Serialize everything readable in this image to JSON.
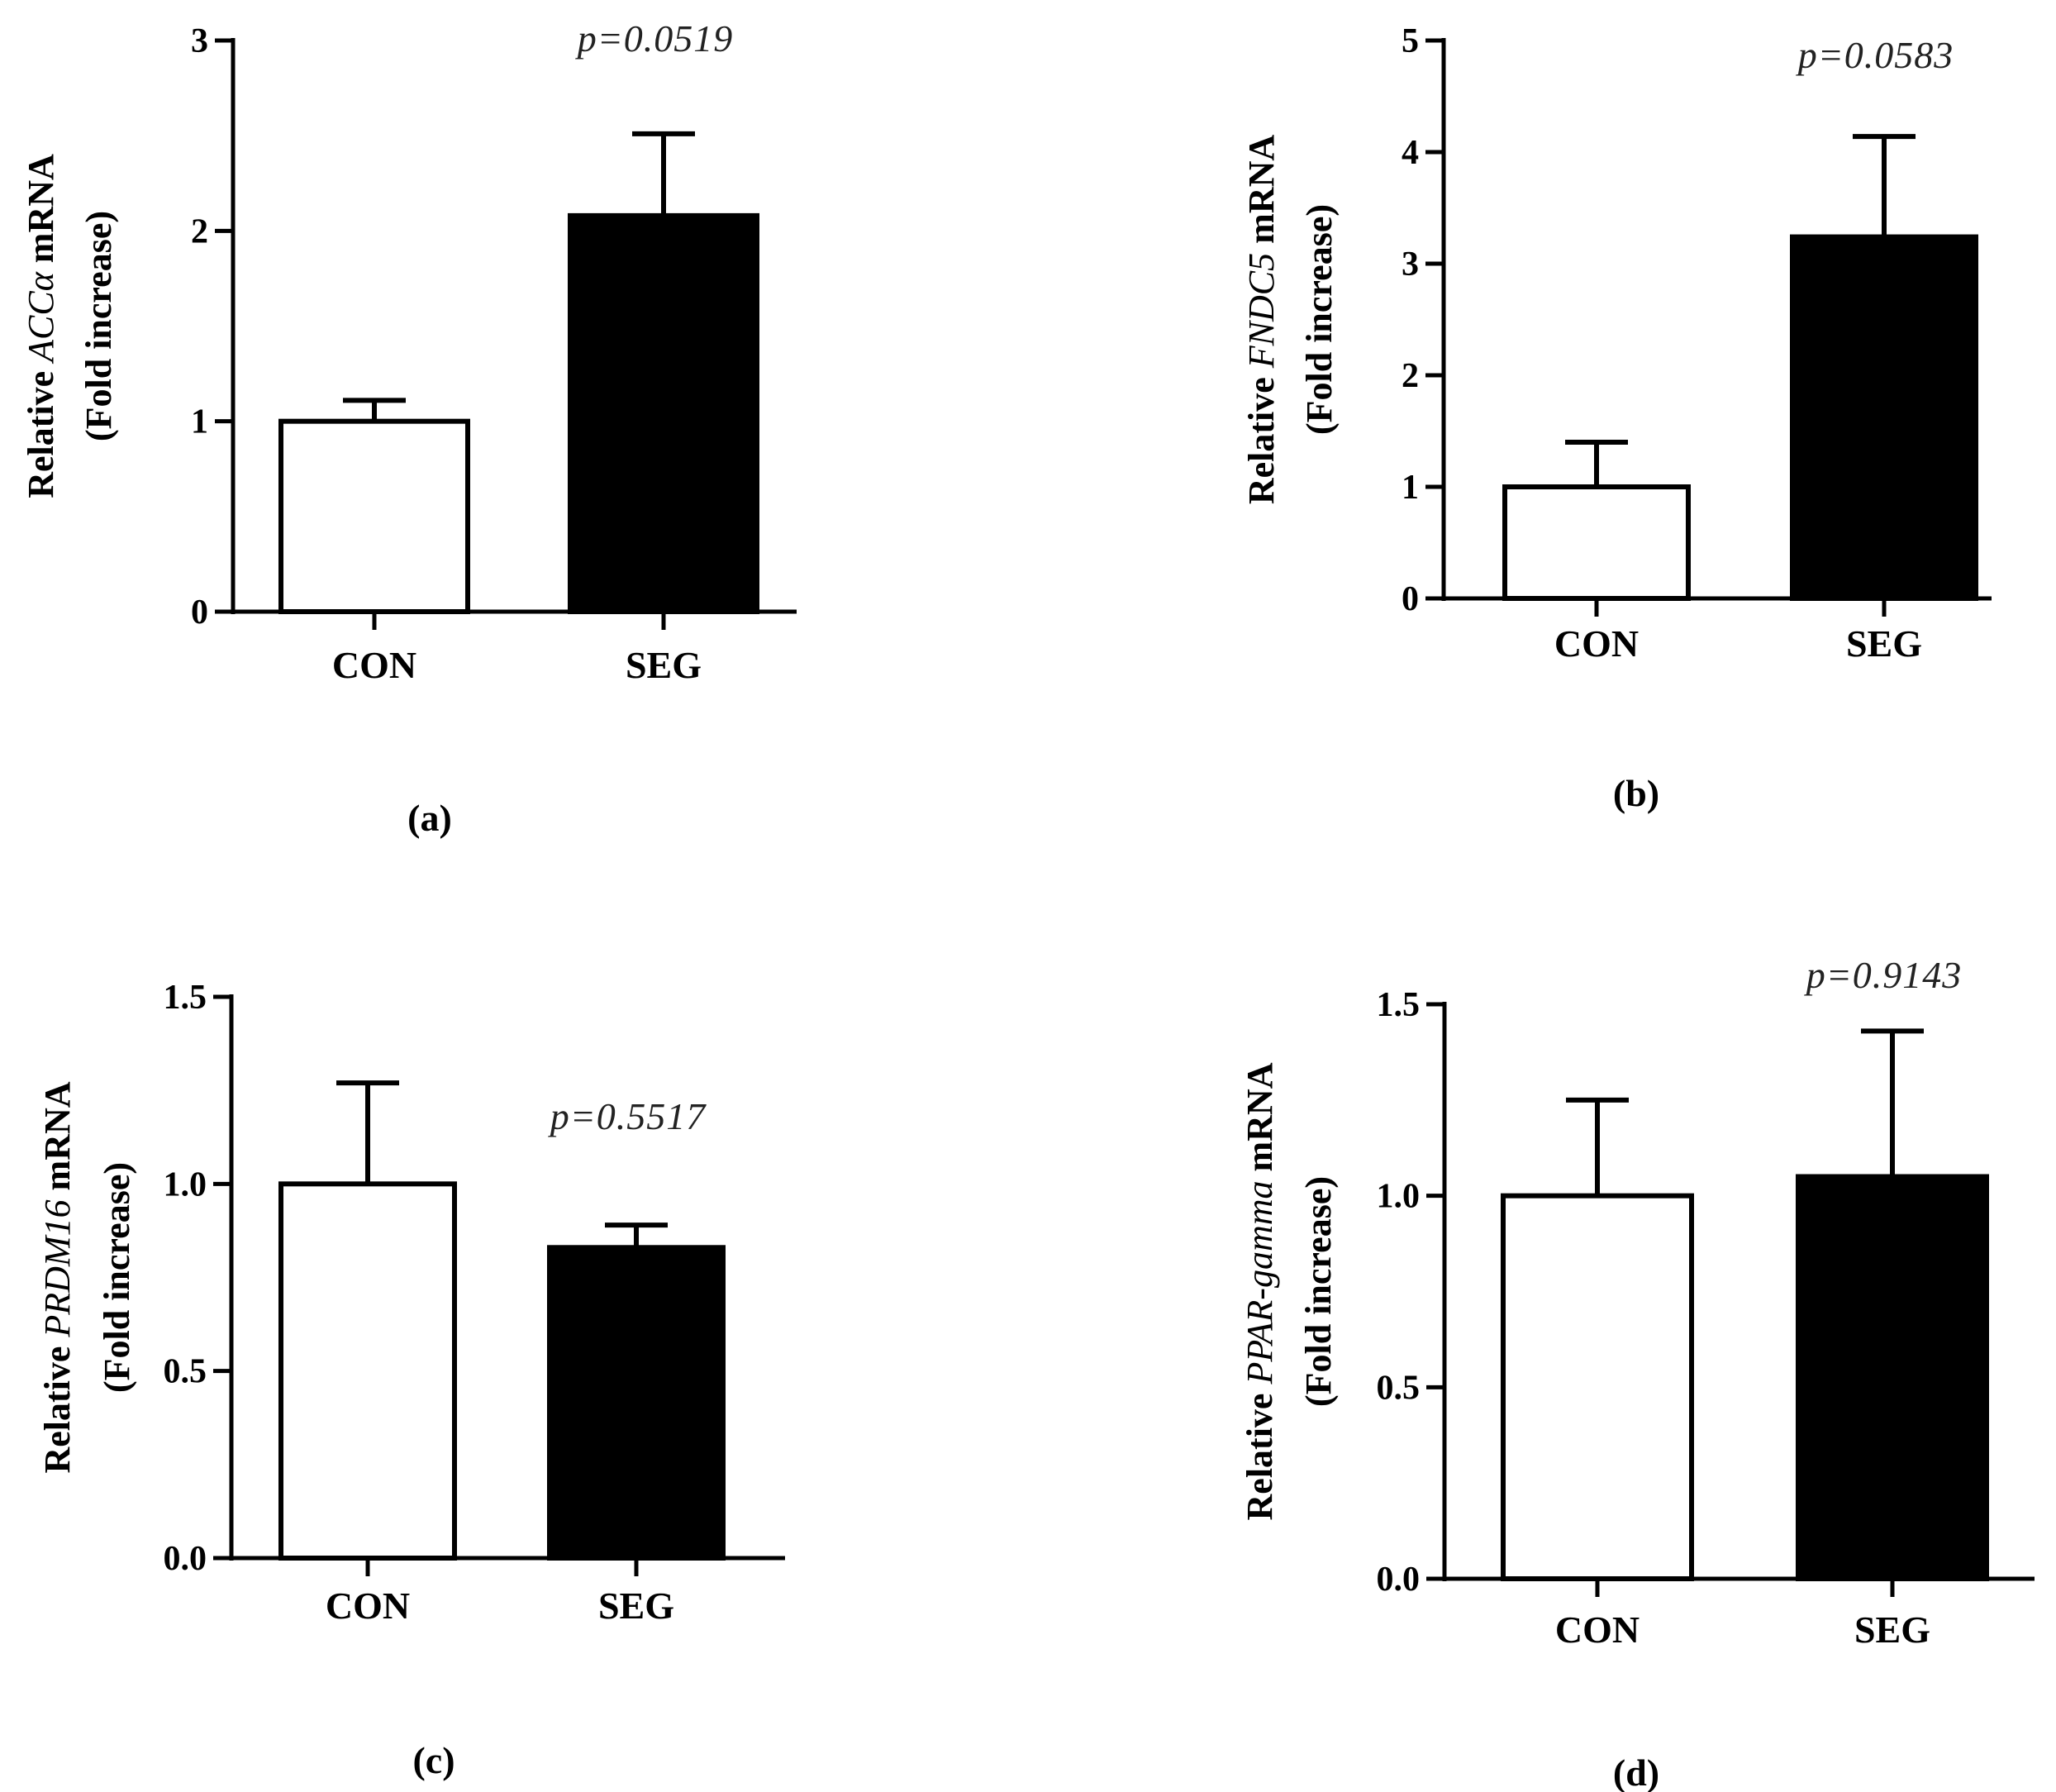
{
  "chart_data": [
    {
      "type": "bar",
      "panel_label": "(a)",
      "categories": [
        "CON",
        "SEG"
      ],
      "values": [
        1.0,
        2.08
      ],
      "errors": [
        0.11,
        0.43
      ],
      "bar_colors": [
        "#ffffff",
        "#000000"
      ],
      "ylim": [
        0,
        3
      ],
      "yticks": [
        "0",
        "1",
        "2",
        "3"
      ],
      "ylabel_line1": [
        "Relative ",
        "ACC",
        "α",
        " mRNA"
      ],
      "ylabel_line2": "(Fold increase)",
      "annotation": "p=0.0519",
      "annotation_over": "SEG"
    },
    {
      "type": "bar",
      "panel_label": "(b)",
      "categories": [
        "CON",
        "SEG"
      ],
      "values": [
        1.0,
        3.24
      ],
      "errors": [
        0.4,
        0.9
      ],
      "bar_colors": [
        "#ffffff",
        "#000000"
      ],
      "ylim": [
        0,
        5
      ],
      "yticks": [
        "0",
        "1",
        "2",
        "3",
        "4",
        "5"
      ],
      "ylabel_line1": [
        "Relative ",
        "FNDC5",
        "",
        " mRNA"
      ],
      "ylabel_line2": "(Fold increase)",
      "annotation": "p=0.0583",
      "annotation_over": "SEG"
    },
    {
      "type": "bar",
      "panel_label": "(c)",
      "categories": [
        "CON",
        "SEG"
      ],
      "values": [
        1.0,
        0.83
      ],
      "errors": [
        0.27,
        0.06
      ],
      "bar_colors": [
        "#ffffff",
        "#000000"
      ],
      "ylim": [
        0,
        1.5
      ],
      "yticks": [
        "0.0",
        "0.5",
        "1.0",
        "1.5"
      ],
      "ylabel_line1": [
        "Relative ",
        "PRDM16",
        "",
        " mRNA"
      ],
      "ylabel_line2": "(Fold increase)",
      "annotation": "p=0.5517",
      "annotation_over": "SEG"
    },
    {
      "type": "bar",
      "panel_label": "(d)",
      "categories": [
        "CON",
        "SEG"
      ],
      "values": [
        1.0,
        1.05
      ],
      "errors": [
        0.25,
        0.38
      ],
      "bar_colors": [
        "#ffffff",
        "#000000"
      ],
      "ylim": [
        0,
        1.5
      ],
      "yticks": [
        "0.0",
        "0.5",
        "1.0",
        "1.5"
      ],
      "ylabel_line1": [
        "Relative ",
        "PPAR-gamma",
        "",
        " mRNA"
      ],
      "ylabel_line2": "(Fold increase)",
      "annotation": "p=0.9143",
      "annotation_over": "SEG"
    }
  ]
}
